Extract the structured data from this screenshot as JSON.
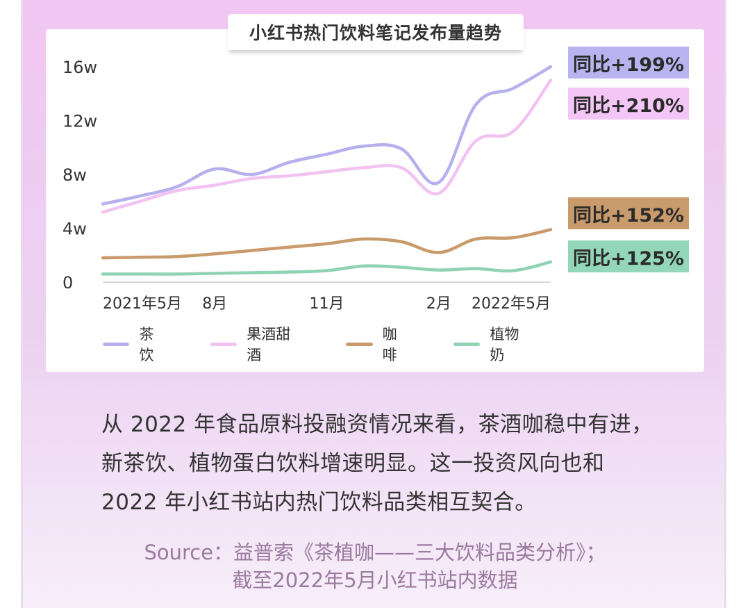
{
  "chart_data": {
    "type": "line",
    "title": "小红书热门饮料笔记发布量趋势",
    "x_tick_labels": [
      "2021年5月",
      "8月",
      "11月",
      "2月",
      "2022年5月"
    ],
    "y_tick_labels": [
      "16w",
      "12w",
      "8w",
      "4w",
      "0"
    ],
    "ylim": [
      0,
      16
    ],
    "y_unit": "w",
    "x_months": [
      "2021-05",
      "2021-06",
      "2021-07",
      "2021-08",
      "2021-09",
      "2021-10",
      "2021-11",
      "2021-12",
      "2022-01",
      "2022-02",
      "2022-03",
      "2022-04",
      "2022-05"
    ],
    "grid": false,
    "legend_position": "bottom",
    "series": [
      {
        "name": "茶饮",
        "color": "#b6b0ee",
        "values": [
          5.8,
          6.4,
          7.1,
          8.4,
          8.0,
          8.9,
          9.5,
          10.1,
          9.9,
          7.4,
          13.2,
          14.4,
          16.0
        ],
        "yoy_label": "同比+199%"
      },
      {
        "name": "果酒甜酒",
        "color": "#f2c2f3",
        "values": [
          5.2,
          6.0,
          6.8,
          7.2,
          7.7,
          7.9,
          8.2,
          8.5,
          8.5,
          6.6,
          10.5,
          11.2,
          15.0
        ],
        "yoy_label": "同比+210%"
      },
      {
        "name": "咖啡",
        "color": "#c99a6b",
        "values": [
          1.8,
          1.85,
          1.9,
          2.1,
          2.35,
          2.6,
          2.85,
          3.2,
          3.0,
          2.2,
          3.2,
          3.3,
          3.9
        ],
        "yoy_label": "同比+152%"
      },
      {
        "name": "植物奶",
        "color": "#8fd3b4",
        "values": [
          0.6,
          0.6,
          0.6,
          0.65,
          0.7,
          0.75,
          0.85,
          1.2,
          1.1,
          0.9,
          1.0,
          0.85,
          1.5
        ],
        "yoy_label": "同比+125%"
      }
    ]
  },
  "badges": [
    {
      "text": "同比+199%",
      "bg": "#b9b3f0"
    },
    {
      "text": "同比+210%",
      "bg": "#f3c6f5"
    },
    {
      "text": "同比+152%",
      "bg": "#c99a6b"
    },
    {
      "text": "同比+125%",
      "bg": "#93d6b8"
    }
  ],
  "body_lines": [
    "从 2022 年食品原料投融资情况来看，茶酒咖稳中有进，",
    "新茶饮、植物蛋白饮料增速明显。这一投资风向也和",
    "2022 年小红书站内热门饮料品类相互契合。"
  ],
  "source_lines": [
    "Source：益普索《茶植咖——三大饮料品类分析》；",
    "截至2022年5月小红书站内数据"
  ]
}
